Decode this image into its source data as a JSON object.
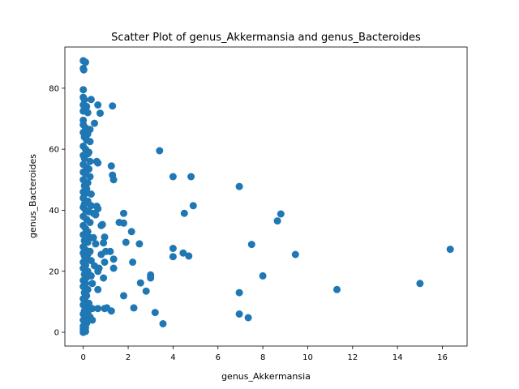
{
  "chart_data": {
    "type": "scatter",
    "title": "Scatter Plot of genus_Akkermansia and genus_Bacteroides",
    "xlabel": "genus_Akkermansia",
    "ylabel": "genus_Bacteroides",
    "xlim": [
      -0.82,
      17.1
    ],
    "ylim": [
      -4.5,
      93.5
    ],
    "xticks": [
      0,
      2,
      4,
      6,
      8,
      10,
      12,
      14,
      16
    ],
    "yticks": [
      0,
      20,
      40,
      60,
      80
    ],
    "grid": false,
    "marker_color": "#1f77b4",
    "points": [
      [
        0.0,
        89.0
      ],
      [
        0.1,
        88.5
      ],
      [
        0.0,
        86.5
      ],
      [
        0.02,
        86.0
      ],
      [
        0.0,
        79.5
      ],
      [
        0.0,
        77.0
      ],
      [
        0.05,
        76.2
      ],
      [
        0.35,
        76.3
      ],
      [
        0.0,
        74.5
      ],
      [
        0.15,
        74.0
      ],
      [
        0.65,
        74.5
      ],
      [
        1.3,
        74.2
      ],
      [
        0.0,
        72.5
      ],
      [
        0.2,
        72.0
      ],
      [
        0.75,
        71.8
      ],
      [
        0.0,
        69.5
      ],
      [
        0.5,
        68.5
      ],
      [
        0.0,
        68.0
      ],
      [
        0.1,
        67.0
      ],
      [
        0.3,
        66.5
      ],
      [
        0.0,
        65.5
      ],
      [
        0.2,
        65.0
      ],
      [
        0.05,
        64.0
      ],
      [
        0.15,
        63.0
      ],
      [
        0.3,
        62.5
      ],
      [
        0.0,
        61.0
      ],
      [
        0.1,
        60.0
      ],
      [
        0.25,
        59.0
      ],
      [
        0.0,
        58.0
      ],
      [
        0.2,
        58.5
      ],
      [
        0.05,
        57.0
      ],
      [
        0.3,
        56.0
      ],
      [
        0.6,
        56.0
      ],
      [
        0.65,
        55.5
      ],
      [
        0.0,
        55.0
      ],
      [
        0.15,
        54.0
      ],
      [
        0.25,
        53.5
      ],
      [
        0.0,
        52.5
      ],
      [
        0.1,
        52.0
      ],
      [
        0.3,
        51.0
      ],
      [
        0.0,
        50.0
      ],
      [
        0.2,
        49.0
      ],
      [
        0.05,
        48.0
      ],
      [
        0.15,
        47.0
      ],
      [
        0.0,
        46.0
      ],
      [
        0.1,
        45.5
      ],
      [
        0.35,
        45.3
      ],
      [
        0.0,
        44.0
      ],
      [
        0.2,
        43.0
      ],
      [
        0.05,
        42.0
      ],
      [
        0.35,
        41.5
      ],
      [
        0.6,
        41.3
      ],
      [
        0.65,
        40.5
      ],
      [
        0.0,
        41.0
      ],
      [
        0.1,
        40.0
      ],
      [
        0.25,
        39.5
      ],
      [
        0.45,
        39.0
      ],
      [
        0.55,
        38.5
      ],
      [
        0.0,
        38.0
      ],
      [
        0.15,
        37.0
      ],
      [
        0.3,
        36.0
      ],
      [
        0.0,
        35.0
      ],
      [
        0.1,
        34.0
      ],
      [
        0.2,
        33.0
      ],
      [
        0.0,
        32.0
      ],
      [
        0.15,
        31.5
      ],
      [
        0.3,
        31.0
      ],
      [
        0.45,
        31.0
      ],
      [
        0.95,
        31.2
      ],
      [
        0.05,
        30.0
      ],
      [
        0.2,
        29.5
      ],
      [
        0.55,
        29.0
      ],
      [
        0.9,
        29.3
      ],
      [
        0.0,
        28.0
      ],
      [
        0.1,
        27.0
      ],
      [
        0.3,
        26.5
      ],
      [
        0.0,
        26.0
      ],
      [
        0.2,
        25.5
      ],
      [
        0.8,
        25.5
      ],
      [
        0.05,
        25.0
      ],
      [
        0.15,
        24.0
      ],
      [
        0.35,
        23.5
      ],
      [
        0.95,
        23.0
      ],
      [
        0.0,
        23.0
      ],
      [
        0.1,
        22.0
      ],
      [
        0.5,
        21.8
      ],
      [
        0.7,
        21.0
      ],
      [
        0.0,
        21.0
      ],
      [
        0.2,
        20.0
      ],
      [
        0.65,
        20.0
      ],
      [
        0.05,
        19.0
      ],
      [
        0.15,
        18.0
      ],
      [
        0.35,
        18.5
      ],
      [
        0.9,
        17.8
      ],
      [
        0.0,
        17.0
      ],
      [
        0.1,
        16.0
      ],
      [
        0.4,
        16.0
      ],
      [
        0.0,
        15.0
      ],
      [
        0.2,
        14.0
      ],
      [
        0.65,
        14.0
      ],
      [
        0.05,
        13.0
      ],
      [
        0.15,
        12.0
      ],
      [
        0.0,
        11.0
      ],
      [
        0.1,
        10.0
      ],
      [
        0.25,
        9.5
      ],
      [
        0.0,
        9.0
      ],
      [
        0.15,
        8.0
      ],
      [
        0.4,
        7.8
      ],
      [
        0.65,
        7.8
      ],
      [
        0.95,
        7.8
      ],
      [
        1.05,
        8.0
      ],
      [
        0.05,
        7.0
      ],
      [
        0.2,
        6.5
      ],
      [
        0.0,
        6.0
      ],
      [
        0.1,
        5.0
      ],
      [
        0.3,
        5.0
      ],
      [
        0.0,
        4.0
      ],
      [
        0.4,
        4.0
      ],
      [
        0.15,
        3.0
      ],
      [
        0.0,
        2.0
      ],
      [
        0.1,
        1.5
      ],
      [
        0.0,
        1.0
      ],
      [
        0.05,
        0.5
      ],
      [
        0.0,
        0.0
      ],
      [
        0.1,
        0.3
      ],
      [
        0.8,
        35.0
      ],
      [
        0.85,
        35.3
      ],
      [
        1.0,
        26.5
      ],
      [
        1.2,
        26.5
      ],
      [
        1.35,
        24.0
      ],
      [
        1.25,
        7.0
      ],
      [
        1.35,
        21.0
      ],
      [
        1.25,
        54.5
      ],
      [
        1.3,
        51.5
      ],
      [
        1.35,
        50.0
      ],
      [
        1.6,
        36.0
      ],
      [
        1.8,
        35.8
      ],
      [
        1.8,
        39.0
      ],
      [
        1.9,
        29.5
      ],
      [
        1.8,
        12.0
      ],
      [
        2.15,
        33.0
      ],
      [
        2.2,
        23.0
      ],
      [
        2.25,
        8.0
      ],
      [
        2.5,
        29.0
      ],
      [
        2.55,
        16.2
      ],
      [
        2.8,
        13.5
      ],
      [
        3.0,
        18.8
      ],
      [
        3.0,
        17.8
      ],
      [
        3.2,
        6.5
      ],
      [
        3.4,
        59.5
      ],
      [
        3.55,
        2.8
      ],
      [
        4.0,
        51.0
      ],
      [
        4.0,
        27.5
      ],
      [
        4.0,
        24.8
      ],
      [
        4.45,
        26.0
      ],
      [
        4.5,
        39.0
      ],
      [
        4.7,
        25.0
      ],
      [
        4.8,
        51.0
      ],
      [
        4.9,
        41.5
      ],
      [
        6.95,
        47.8
      ],
      [
        6.95,
        13.0
      ],
      [
        6.95,
        6.0
      ],
      [
        7.35,
        4.8
      ],
      [
        7.5,
        28.8
      ],
      [
        8.0,
        18.5
      ],
      [
        8.65,
        36.5
      ],
      [
        8.8,
        38.8
      ],
      [
        9.45,
        25.5
      ],
      [
        11.3,
        14.0
      ],
      [
        15.0,
        16.0
      ],
      [
        16.35,
        27.2
      ]
    ]
  }
}
